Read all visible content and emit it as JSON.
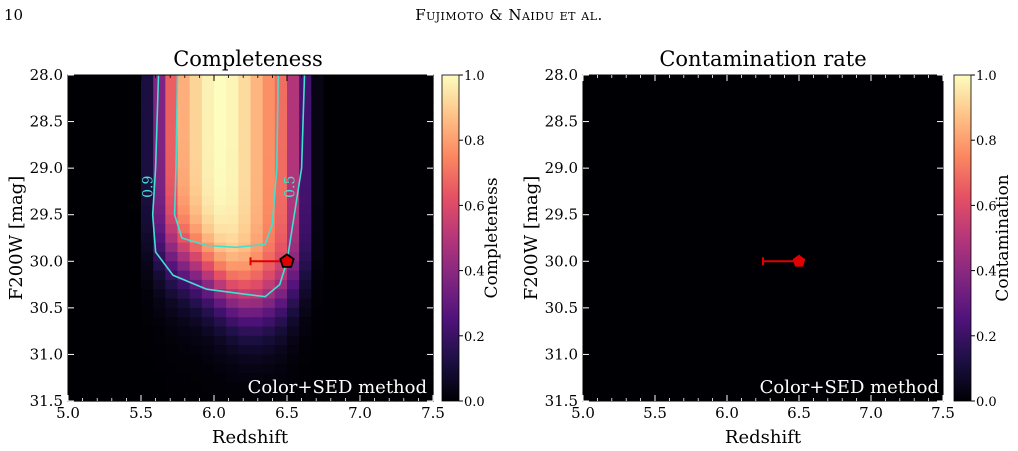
{
  "header": {
    "page_number": "10",
    "running_title": "Fujimoto & Naidu et al."
  },
  "chart_data": [
    {
      "type": "heatmap",
      "title": "Completeness",
      "xlabel": "Redshift",
      "ylabel": "F200W [mag]",
      "xlim": [
        5.0,
        7.5
      ],
      "ylim": [
        31.5,
        28.0
      ],
      "xticks": [
        "5.0",
        "5.5",
        "6.0",
        "6.5",
        "7.0",
        "7.5"
      ],
      "yticks": [
        "28.0",
        "28.5",
        "29.0",
        "29.5",
        "30.0",
        "30.5",
        "31.0",
        "31.5"
      ],
      "colorbar": {
        "label": "Completeness",
        "ticks": [
          "0.0",
          "0.2",
          "0.4",
          "0.6",
          "0.8",
          "1.0"
        ],
        "range": [
          0,
          1
        ],
        "colormap": "magma"
      },
      "contours": [
        {
          "level": 0.5,
          "label": "0.5",
          "color": "#40e0d0"
        },
        {
          "level": 0.9,
          "label": "0.9",
          "color": "#40e0d0"
        }
      ],
      "point": {
        "x": 6.5,
        "y": 30.0,
        "xerr_low": 0.25,
        "marker": "pentagon",
        "color": "#e00000"
      },
      "annotation": "Color+SED method"
    },
    {
      "type": "heatmap",
      "title": "Contamination rate",
      "xlabel": "Redshift",
      "ylabel": "F200W [mag]",
      "xlim": [
        5.0,
        7.5
      ],
      "ylim": [
        31.5,
        28.0
      ],
      "xticks": [
        "5.0",
        "5.5",
        "6.0",
        "6.5",
        "7.0",
        "7.5"
      ],
      "yticks": [
        "28.0",
        "28.5",
        "29.0",
        "29.5",
        "30.0",
        "30.5",
        "31.0",
        "31.5"
      ],
      "colorbar": {
        "label": "Contamination",
        "ticks": [
          "0.0",
          "0.2",
          "0.4",
          "0.6",
          "0.8",
          "1.0"
        ],
        "range": [
          0,
          1
        ],
        "colormap": "magma"
      },
      "values_note": "all cells 0",
      "point": {
        "x": 6.5,
        "y": 30.0,
        "xerr_low": 0.25,
        "marker": "pentagon",
        "color": "#e00000"
      },
      "annotation": "Color+SED method"
    }
  ]
}
